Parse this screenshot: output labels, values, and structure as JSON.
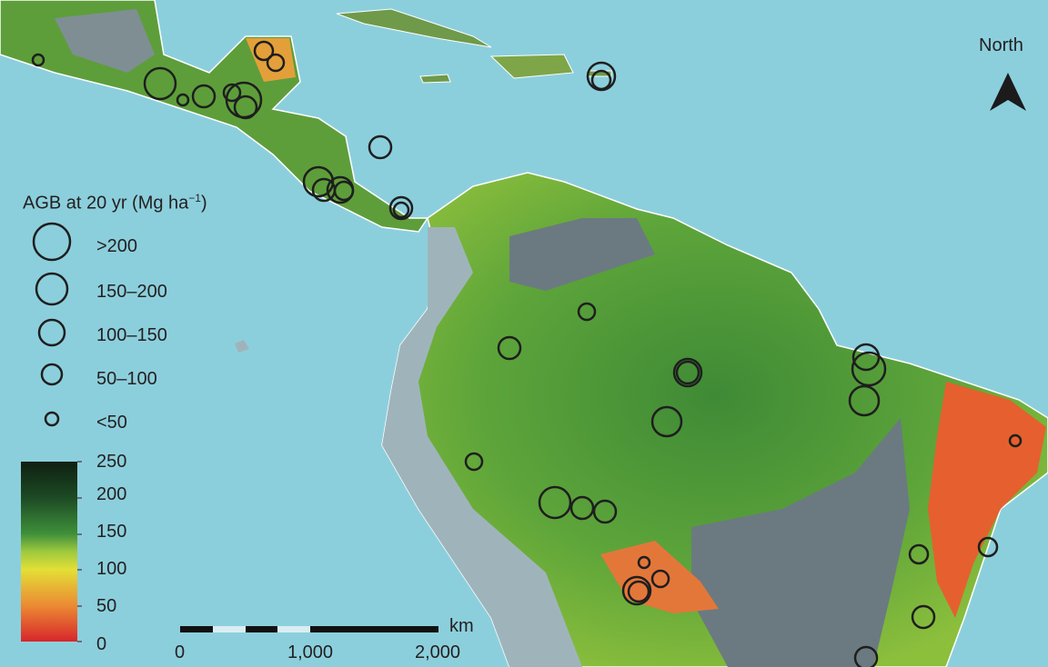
{
  "map": {
    "north_label": "North",
    "colors": {
      "ocean": "#8ccfdc",
      "highland": "#9fb4ba",
      "lowland_gray": "#6b7a80",
      "site_ring": "#1e1e1e"
    }
  },
  "legend": {
    "title": "AGB at 20 yr (Mg ha",
    "title_sup": "−1",
    "title_close": ")",
    "size_classes": [
      ">200",
      "150–200",
      "100–150",
      "50–100",
      "<50"
    ],
    "colorbar": {
      "ticks": [
        "250",
        "200",
        "150",
        "100",
        "50",
        "0"
      ],
      "range": [
        0,
        250
      ],
      "colors": [
        "#d7262b",
        "#eb8a33",
        "#e3df36",
        "#9dc93e",
        "#3f8f3a",
        "#1c4a24",
        "#0f1f12"
      ]
    }
  },
  "scale_bar": {
    "unit": "km",
    "labels": [
      "0",
      "1,000",
      "2,000"
    ]
  }
}
